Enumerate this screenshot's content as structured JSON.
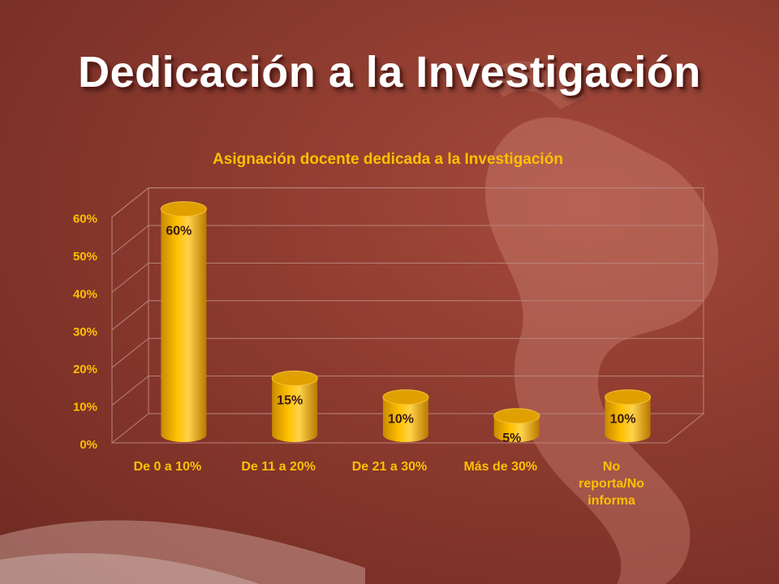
{
  "slide": {
    "title": "Dedicación a la Investigación"
  },
  "chart_data": {
    "type": "bar",
    "title": "Asignación docente dedicada a la Investigación",
    "categories": [
      "De 0 a 10%",
      "De 11 a 20%",
      "De 21 a 30%",
      "Más de 30%",
      "No reporta/No informa"
    ],
    "values": [
      60,
      15,
      10,
      5,
      10
    ],
    "data_labels": [
      "60%",
      "15%",
      "10%",
      "5%",
      "10%"
    ],
    "y_ticks": [
      "0%",
      "10%",
      "20%",
      "30%",
      "40%",
      "50%",
      "60%"
    ],
    "ylim": [
      0,
      60
    ],
    "grid": true,
    "legend": "none",
    "bar_color": "#ffc000",
    "text_color": "#ffc000"
  }
}
